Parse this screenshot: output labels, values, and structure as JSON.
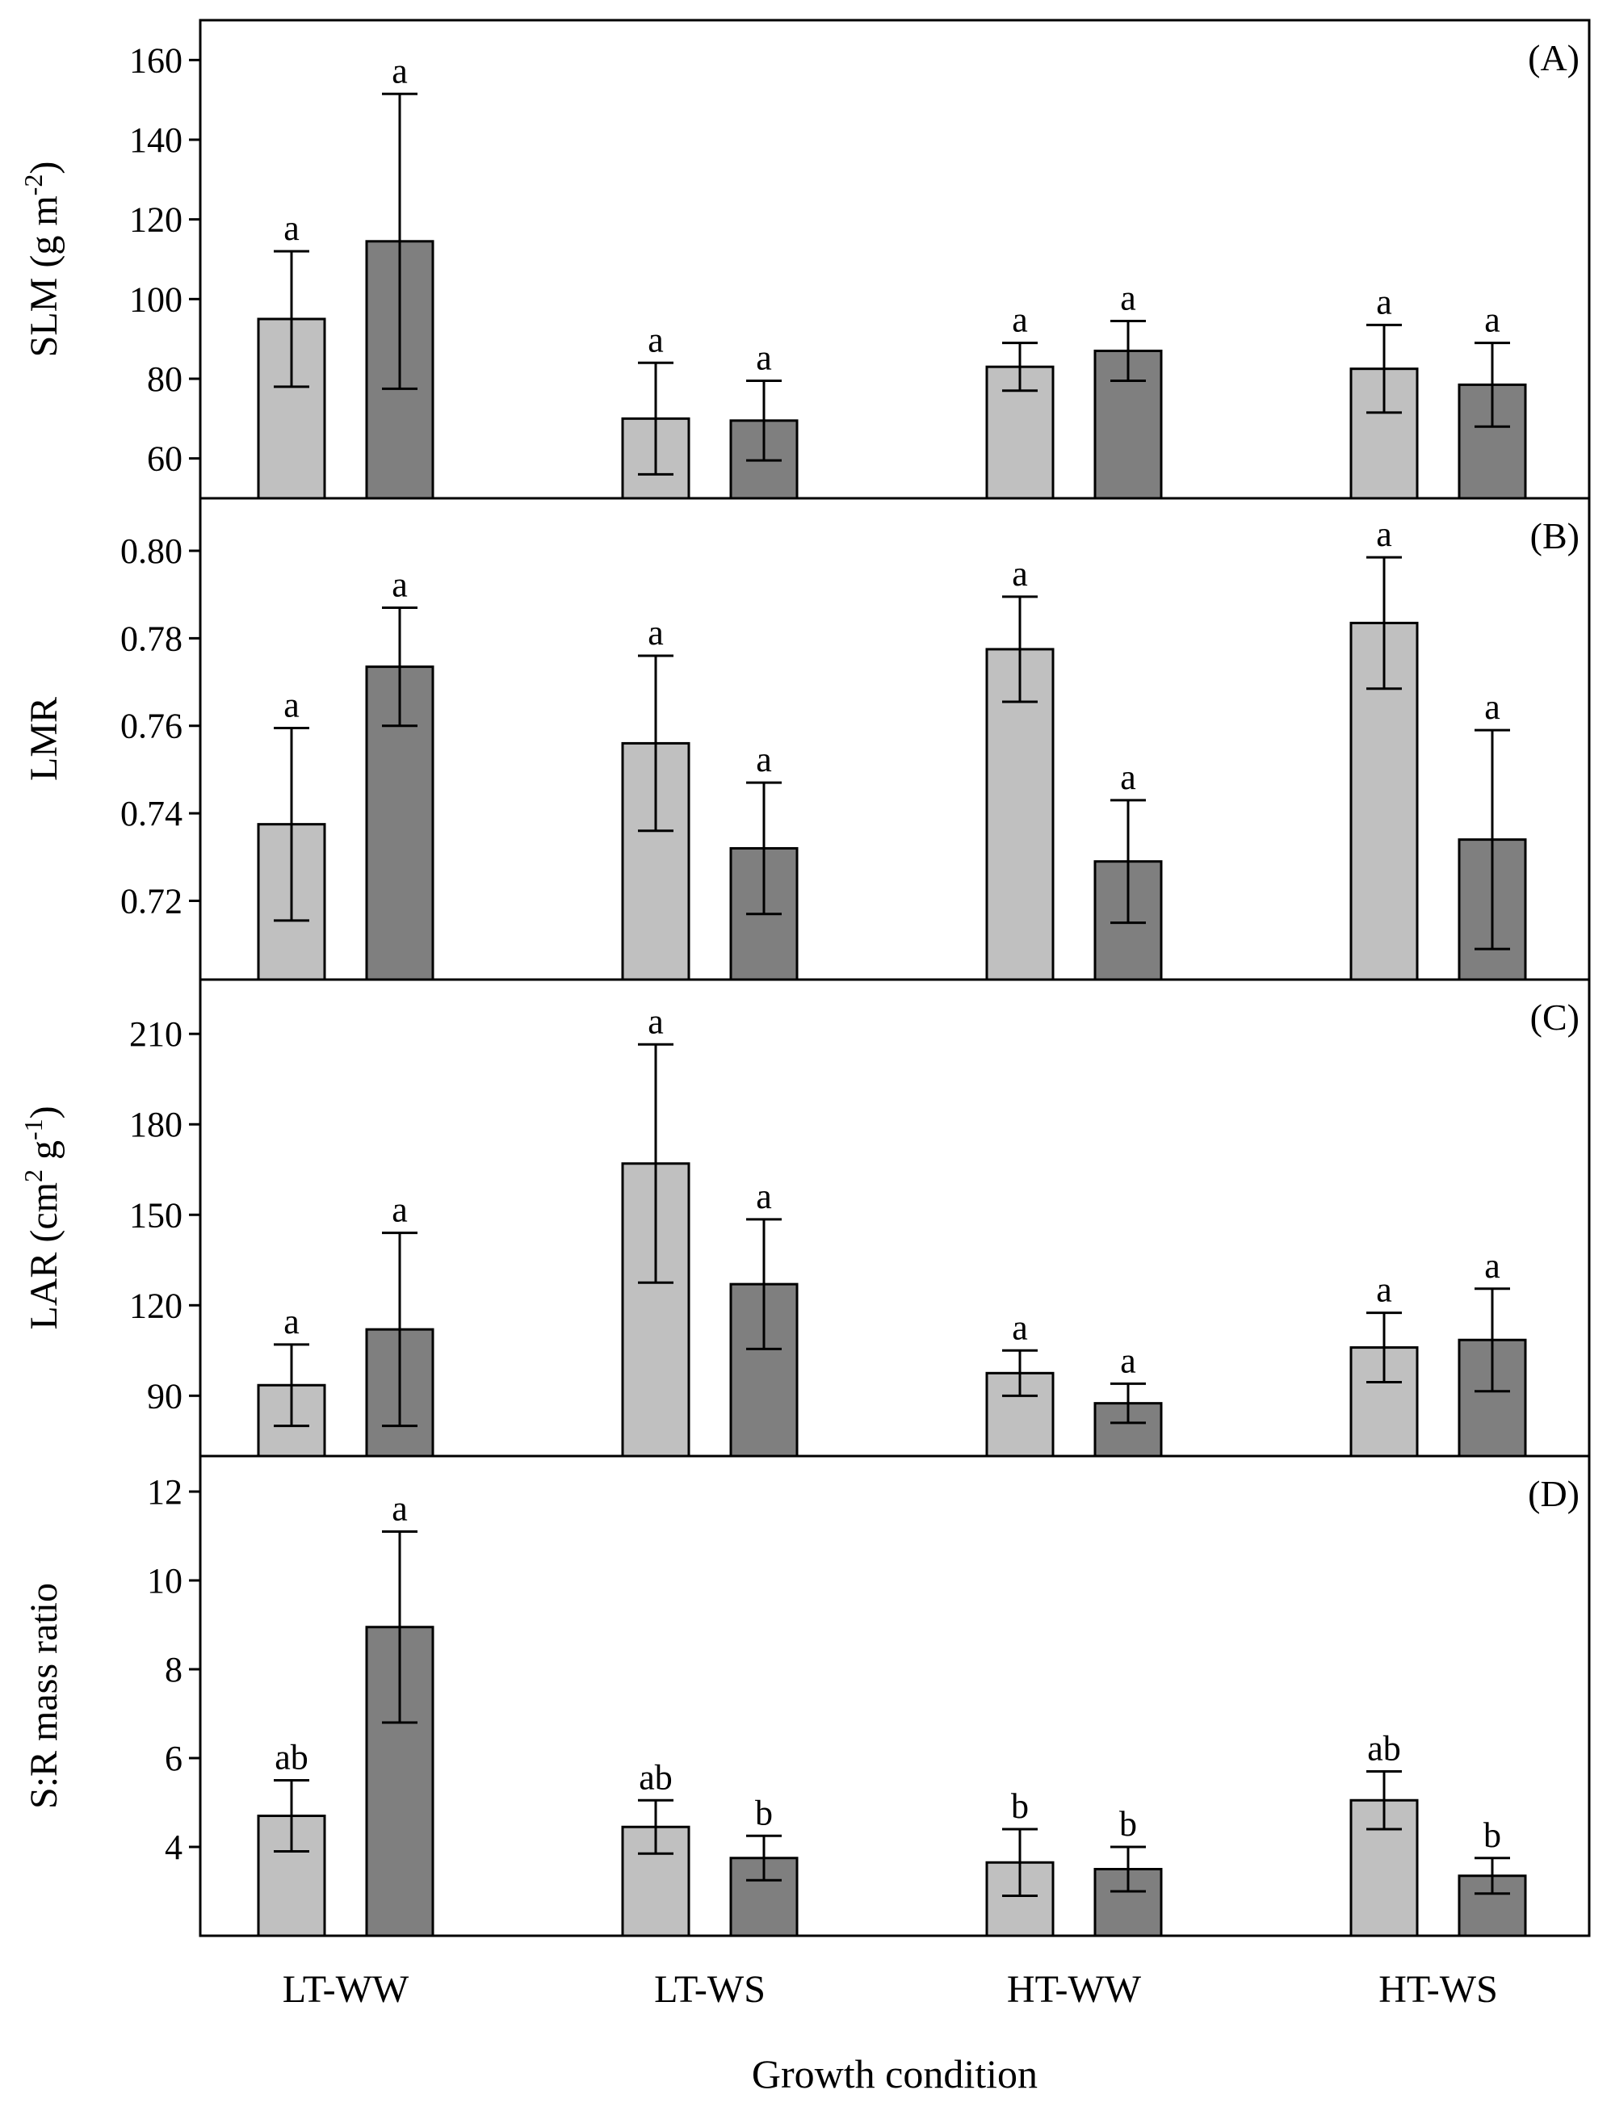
{
  "chart_data": [
    {
      "type": "bar",
      "panel": "(A)",
      "ylabel": "SLM (g m",
      "ylabel_sup": "-2",
      "ylabel_tail": ")",
      "ylim": [
        50,
        170
      ],
      "yticks": [
        60,
        80,
        100,
        120,
        140,
        160
      ],
      "categories": [
        "LT-WW",
        "LT-WS",
        "HT-WW",
        "HT-WS"
      ],
      "series": [
        {
          "name": "light",
          "color": "#c0c0c0",
          "values": [
            95,
            70,
            83,
            82.5
          ],
          "errors": [
            17,
            14,
            6,
            11
          ],
          "labels": [
            "a",
            "a",
            "a",
            "a"
          ]
        },
        {
          "name": "dark",
          "color": "#7f7f7f",
          "values": [
            114.5,
            69.5,
            87,
            78.5
          ],
          "errors": [
            37,
            10,
            7.5,
            10.5
          ],
          "labels": [
            "a",
            "a",
            "a",
            "a"
          ]
        }
      ]
    },
    {
      "type": "bar",
      "panel": "(B)",
      "ylabel": "LMR",
      "ylabel_sup": "",
      "ylabel_tail": "",
      "ylim": [
        0.702,
        0.812
      ],
      "yticks": [
        0.72,
        0.74,
        0.76,
        0.78,
        0.8
      ],
      "tick_decimals": 2,
      "categories": [
        "LT-WW",
        "LT-WS",
        "HT-WW",
        "HT-WS"
      ],
      "series": [
        {
          "name": "light",
          "color": "#c0c0c0",
          "values": [
            0.7375,
            0.756,
            0.7775,
            0.7835
          ],
          "errors": [
            0.022,
            0.02,
            0.012,
            0.015
          ],
          "labels": [
            "a",
            "a",
            "a",
            "a"
          ]
        },
        {
          "name": "dark",
          "color": "#7f7f7f",
          "values": [
            0.7735,
            0.732,
            0.729,
            0.734
          ],
          "errors": [
            0.0135,
            0.015,
            0.014,
            0.025
          ],
          "labels": [
            "a",
            "a",
            "a",
            "a"
          ]
        }
      ]
    },
    {
      "type": "bar",
      "panel": "(C)",
      "ylabel": "LAR (cm",
      "ylabel_sup": "2",
      "ylabel_mid": " g",
      "ylabel_sup2": "-1",
      "ylabel_tail": ")",
      "ylim": [
        70,
        228
      ],
      "yticks": [
        90,
        120,
        150,
        180,
        210
      ],
      "categories": [
        "LT-WW",
        "LT-WS",
        "HT-WW",
        "HT-WS"
      ],
      "series": [
        {
          "name": "light",
          "color": "#c0c0c0",
          "values": [
            93.5,
            167,
            97.5,
            106
          ],
          "errors": [
            13.5,
            39.5,
            7.5,
            11.5
          ],
          "labels": [
            "a",
            "a",
            "a",
            "a"
          ]
        },
        {
          "name": "dark",
          "color": "#7f7f7f",
          "values": [
            112,
            127,
            87.5,
            108.5
          ],
          "errors": [
            32,
            21.5,
            6.5,
            17
          ],
          "labels": [
            "a",
            "a",
            "a",
            "a"
          ]
        }
      ]
    },
    {
      "type": "bar",
      "panel": "(D)",
      "ylabel": "S:R mass ratio",
      "ylabel_sup": "",
      "ylabel_tail": "",
      "ylim": [
        2,
        12.8
      ],
      "yticks": [
        4,
        6,
        8,
        10,
        12
      ],
      "categories": [
        "LT-WW",
        "LT-WS",
        "HT-WW",
        "HT-WS"
      ],
      "series": [
        {
          "name": "light",
          "color": "#c0c0c0",
          "values": [
            4.7,
            4.45,
            3.65,
            5.05
          ],
          "errors": [
            0.8,
            0.6,
            0.75,
            0.65
          ],
          "labels": [
            "ab",
            "ab",
            "b",
            "ab"
          ]
        },
        {
          "name": "dark",
          "color": "#7f7f7f",
          "values": [
            8.95,
            3.75,
            3.5,
            3.35
          ],
          "errors": [
            2.15,
            0.5,
            0.5,
            0.4
          ],
          "labels": [
            "a",
            "b",
            "b",
            "b"
          ]
        }
      ]
    }
  ],
  "xlabel": "Growth condition",
  "categories": [
    "LT-WW",
    "LT-WS",
    "HT-WW",
    "HT-WS"
  ]
}
